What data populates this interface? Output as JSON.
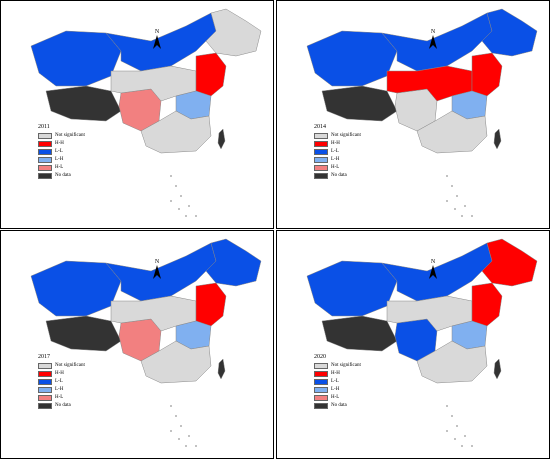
{
  "legend_items": [
    {
      "label": "Not significant",
      "color": "#d9d9d9"
    },
    {
      "label": "H-H",
      "color": "#ff0000"
    },
    {
      "label": "L-L",
      "color": "#0a50e6"
    },
    {
      "label": "L-H",
      "color": "#80b0f0"
    },
    {
      "label": "H-L",
      "color": "#f28080"
    },
    {
      "label": "No data",
      "color": "#333333"
    }
  ],
  "north_label": "N",
  "panels": [
    {
      "year": "2011",
      "regions": {
        "northwest": "L-L",
        "north": "L-L",
        "northeast": "Not significant",
        "tibet": "No data",
        "southwest": "H-L",
        "east_coast": "H-H",
        "central_east": "L-H",
        "south": "Not significant",
        "central": "Not significant",
        "taiwan": "No data"
      }
    },
    {
      "year": "2014",
      "regions": {
        "northwest": "L-L",
        "north": "L-L",
        "northeast": "L-L",
        "tibet": "No data",
        "southwest": "Not significant",
        "east_coast": "H-H",
        "central_east": "L-H",
        "south": "Not significant",
        "central": "H-H",
        "taiwan": "No data"
      }
    },
    {
      "year": "2017",
      "regions": {
        "northwest": "L-L",
        "north": "L-L",
        "northeast": "L-L",
        "tibet": "No data",
        "southwest": "H-L",
        "east_coast": "H-H",
        "central_east": "L-H",
        "south": "Not significant",
        "central": "Not significant",
        "taiwan": "No data"
      }
    },
    {
      "year": "2020",
      "regions": {
        "northwest": "L-L",
        "north": "L-L",
        "northeast": "H-H",
        "tibet": "No data",
        "southwest": "L-L",
        "east_coast": "H-H",
        "central_east": "L-H",
        "south": "Not significant",
        "central": "Not significant",
        "taiwan": "No data"
      }
    }
  ]
}
